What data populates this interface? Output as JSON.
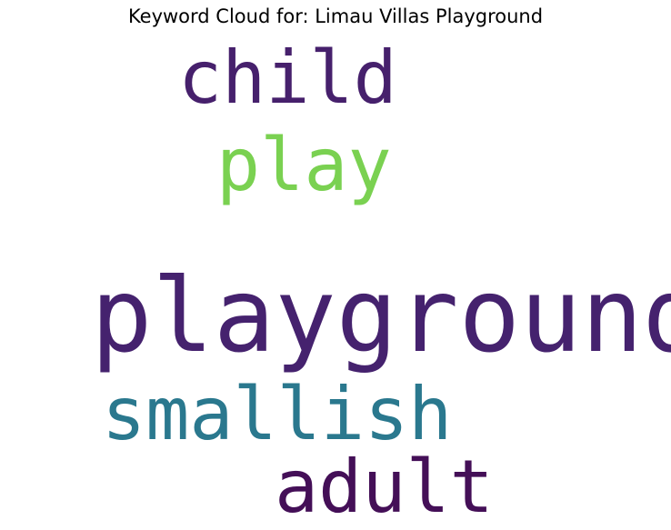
{
  "title": "Keyword Cloud for: Limau Villas Playground",
  "words": [
    {
      "text": "child",
      "color": "#46206c"
    },
    {
      "text": "play",
      "color": "#7ad151"
    },
    {
      "text": "playground",
      "color": "#45226e"
    },
    {
      "text": "smallish",
      "color": "#2a788e"
    },
    {
      "text": "adult",
      "color": "#440f57"
    }
  ]
}
